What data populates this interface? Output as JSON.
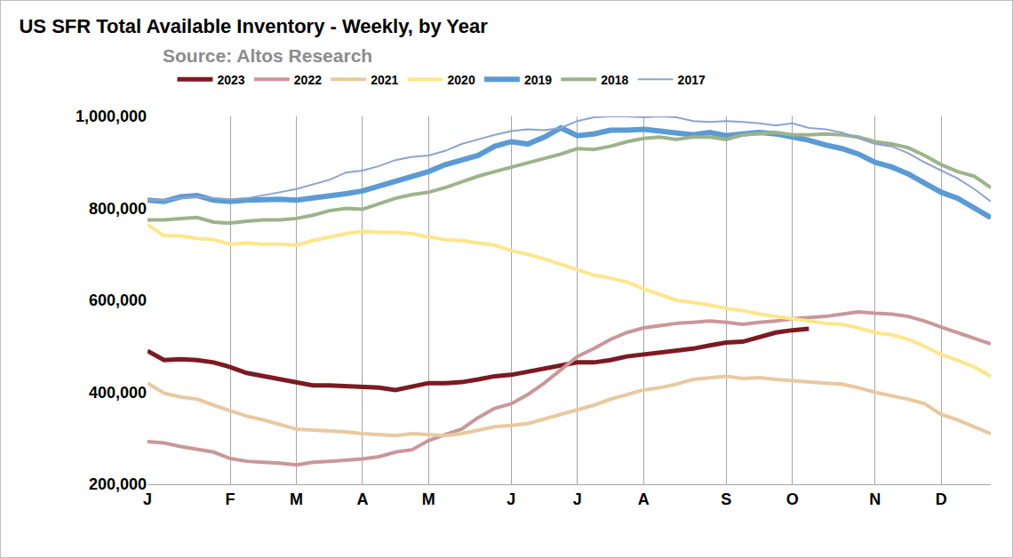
{
  "chart_data": {
    "type": "line",
    "title": "US SFR Total Available Inventory - Weekly, by Year",
    "subtitle": "Source: Altos Research",
    "categories": [
      "J",
      null,
      null,
      null,
      null,
      "F",
      null,
      null,
      null,
      "M",
      null,
      null,
      null,
      "A",
      null,
      null,
      null,
      "M",
      null,
      null,
      null,
      null,
      "J",
      null,
      null,
      null,
      "J",
      null,
      null,
      null,
      "A",
      null,
      null,
      null,
      null,
      "S",
      null,
      null,
      null,
      "O",
      null,
      null,
      null,
      null,
      "N",
      null,
      null,
      null,
      "D",
      null,
      null,
      null
    ],
    "ylim": [
      200000,
      1000000
    ],
    "yticks": [
      {
        "value": 200000,
        "label": "200,000"
      },
      {
        "value": 400000,
        "label": "400,000"
      },
      {
        "value": 600000,
        "label": "600,000"
      },
      {
        "value": 800000,
        "label": "800,000"
      },
      {
        "value": 1000000,
        "label": "1,000,000"
      }
    ],
    "grid": true,
    "legend": "top",
    "series": [
      {
        "name": "2023",
        "color": "#7b1a22",
        "values": [
          490000,
          470000,
          472000,
          470000,
          465000,
          455000,
          442000,
          435000,
          428000,
          420000,
          415000,
          415000,
          413000,
          410000,
          410000,
          405000,
          412000,
          420000,
          420000,
          422000,
          428000,
          435000,
          438000,
          445000,
          452000,
          460000,
          465000,
          465000,
          470000,
          478000,
          482000,
          485000,
          490000,
          495000,
          502000,
          508000,
          510000,
          520000,
          530000,
          535000,
          538000,
          null,
          null,
          null,
          null,
          null,
          null,
          null,
          null,
          null,
          null,
          null
        ]
      },
      {
        "name": "2022",
        "color": "#c9979b",
        "values": [
          293000,
          290000,
          282000,
          276000,
          270000,
          256000,
          250000,
          248000,
          246000,
          242000,
          248000,
          250000,
          252000,
          255000,
          260000,
          270000,
          275000,
          295000,
          308000,
          320000,
          345000,
          365000,
          375000,
          395000,
          420000,
          450000,
          478000,
          495000,
          515000,
          530000,
          540000,
          545000,
          550000,
          552000,
          555000,
          552000,
          548000,
          552000,
          555000,
          560000,
          562000,
          565000,
          570000,
          575000,
          572000,
          570000,
          565000,
          555000,
          542000,
          530000,
          518000,
          505000
        ]
      },
      {
        "name": "2021",
        "color": "#e8c9a0",
        "values": [
          420000,
          398000,
          390000,
          385000,
          372000,
          360000,
          348000,
          340000,
          330000,
          320000,
          318000,
          316000,
          314000,
          310000,
          308000,
          306000,
          310000,
          308000,
          306000,
          310000,
          318000,
          325000,
          328000,
          332000,
          342000,
          352000,
          360000,
          372000,
          385000,
          395000,
          405000,
          410000,
          418000,
          428000,
          432000,
          435000,
          430000,
          432000,
          428000,
          425000,
          422000,
          420000,
          418000,
          410000,
          400000,
          392000,
          385000,
          375000,
          352000,
          340000,
          325000,
          310000
        ]
      },
      {
        "name": "2020",
        "color": "#ffe68c",
        "values": [
          765000,
          740000,
          740000,
          735000,
          732000,
          722000,
          725000,
          722000,
          722000,
          720000,
          730000,
          738000,
          745000,
          750000,
          748000,
          748000,
          745000,
          738000,
          732000,
          730000,
          725000,
          720000,
          708000,
          700000,
          690000,
          678000,
          665000,
          655000,
          648000,
          640000,
          625000,
          612000,
          600000,
          595000,
          590000,
          582000,
          578000,
          570000,
          565000,
          560000,
          555000,
          550000,
          548000,
          540000,
          530000,
          525000,
          515000,
          500000,
          482000,
          470000,
          455000,
          435000
        ]
      },
      {
        "name": "2019",
        "color": "#5b9bd5",
        "values": [
          818000,
          815000,
          825000,
          828000,
          818000,
          815000,
          818000,
          820000,
          820000,
          818000,
          822000,
          828000,
          832000,
          838000,
          848000,
          860000,
          868000,
          880000,
          895000,
          905000,
          915000,
          935000,
          945000,
          940000,
          955000,
          975000,
          958000,
          962000,
          970000,
          970000,
          972000,
          968000,
          965000,
          960000,
          965000,
          958000,
          962000,
          965000,
          962000,
          955000,
          948000,
          938000,
          930000,
          918000,
          900000,
          890000,
          875000,
          855000,
          835000,
          822000,
          802000,
          780000
        ]
      },
      {
        "name": "2018",
        "color": "#9db38a",
        "values": [
          775000,
          775000,
          778000,
          780000,
          770000,
          768000,
          772000,
          775000,
          775000,
          778000,
          785000,
          795000,
          800000,
          798000,
          810000,
          822000,
          830000,
          835000,
          845000,
          858000,
          870000,
          880000,
          890000,
          900000,
          910000,
          918000,
          930000,
          928000,
          935000,
          945000,
          952000,
          955000,
          950000,
          955000,
          955000,
          950000,
          960000,
          962000,
          965000,
          960000,
          960000,
          962000,
          960000,
          955000,
          945000,
          940000,
          932000,
          915000,
          895000,
          880000,
          870000,
          845000
        ]
      },
      {
        "name": "2017",
        "color": "#8da3cf",
        "values": [
          818000,
          818000,
          822000,
          825000,
          822000,
          820000,
          822000,
          828000,
          835000,
          842000,
          852000,
          862000,
          878000,
          882000,
          892000,
          905000,
          912000,
          915000,
          925000,
          940000,
          950000,
          960000,
          968000,
          972000,
          970000,
          975000,
          990000,
          998000,
          1000000,
          1000000,
          998000,
          1000000,
          998000,
          990000,
          988000,
          990000,
          988000,
          985000,
          980000,
          985000,
          975000,
          972000,
          965000,
          952000,
          940000,
          935000,
          920000,
          900000,
          882000,
          865000,
          842000,
          815000
        ]
      }
    ]
  }
}
